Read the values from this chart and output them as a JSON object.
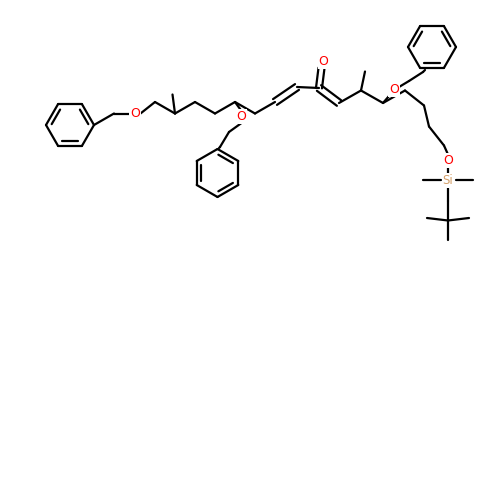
{
  "bg_color": "#ffffff",
  "bond_color": "#000000",
  "O_color": "#ff0000",
  "Si_color": "#d4a06a",
  "lw": 1.6,
  "figsize": [
    5.0,
    5.0
  ],
  "dpi": 100,
  "xlim": [
    -0.5,
    9.5
  ],
  "ylim": [
    -0.5,
    9.5
  ]
}
